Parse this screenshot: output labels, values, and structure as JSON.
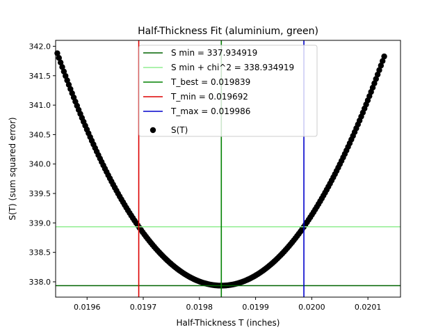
{
  "chart_data": {
    "type": "scatter",
    "title": "Half-Thickness Fit (aluminium, green)",
    "xlabel": "Half-Thickness T (inches)",
    "ylabel": "S(T) (sum squared error)",
    "xlim": [
      0.019544,
      0.020158
    ],
    "ylim": [
      337.74,
      342.1
    ],
    "xticks": [
      {
        "value": 0.0196,
        "label": "0.0196"
      },
      {
        "value": 0.0197,
        "label": "0.0197"
      },
      {
        "value": 0.0198,
        "label": "0.0198"
      },
      {
        "value": 0.0199,
        "label": "0.0199"
      },
      {
        "value": 0.02,
        "label": "0.0200"
      },
      {
        "value": 0.0201,
        "label": "0.0201"
      }
    ],
    "yticks": [
      {
        "value": 338.0,
        "label": "338.0"
      },
      {
        "value": 338.5,
        "label": "338.5"
      },
      {
        "value": 339.0,
        "label": "339.0"
      },
      {
        "value": 339.5,
        "label": "339.5"
      },
      {
        "value": 340.0,
        "label": "340.0"
      },
      {
        "value": 340.5,
        "label": "340.5"
      },
      {
        "value": 341.0,
        "label": "341.0"
      },
      {
        "value": 341.5,
        "label": "341.5"
      },
      {
        "value": 342.0,
        "label": "342.0"
      }
    ],
    "grid": false,
    "legend_position": "top-center",
    "hlines": [
      {
        "y": 337.934919,
        "color": "#006400",
        "label": "S min = 337.934919"
      },
      {
        "y": 338.934919,
        "color": "#90ee90",
        "label": "S min + chi^2 = 338.934919"
      }
    ],
    "vlines": [
      {
        "x": 0.019839,
        "color": "#008000",
        "label": "T_best = 0.019839"
      },
      {
        "x": 0.019692,
        "color": "#dd0000",
        "label": "T_min = 0.019692"
      },
      {
        "x": 0.019986,
        "color": "#0000cc",
        "label": "T_max = 0.019986"
      }
    ],
    "series": [
      {
        "name": "S(T)",
        "marker": "circle",
        "color": "#000000",
        "x_start": 0.019547,
        "x_end": 0.020129,
        "points": 200,
        "model": {
          "kind": "quadratic",
          "x0": 0.019839,
          "y0": 337.934919,
          "curvature": 46280000
        }
      }
    ]
  }
}
